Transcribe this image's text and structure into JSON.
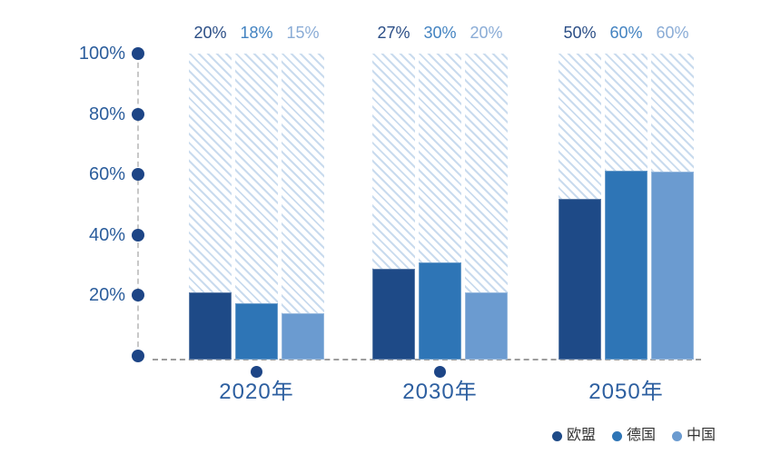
{
  "chart_data": {
    "type": "bar",
    "title": "",
    "y_axis": {
      "tick_labels": [
        "100%",
        "80%",
        "60%",
        "40%",
        "20%"
      ],
      "range": [
        0,
        100
      ],
      "grid": false,
      "text_color": "#2b5d9c"
    },
    "categories": [
      "2020年",
      "2030年",
      "2050年"
    ],
    "series": [
      {
        "name": "欧盟",
        "color": "#1e4a87",
        "values": [
          20,
          27,
          50
        ]
      },
      {
        "name": "德国",
        "color": "#2e75b6",
        "values": [
          18,
          30,
          60
        ]
      },
      {
        "name": "中国",
        "color": "#6b9bd0",
        "values": [
          15,
          20,
          60
        ]
      }
    ],
    "value_label_colors": [
      "#2b4e86",
      "#4383c1",
      "#8aacd6"
    ],
    "groups": [
      {
        "label": "2020年",
        "axis_dot": true,
        "bars": [
          {
            "series": "欧盟",
            "value_label": "20%",
            "display_pct": 22.0
          },
          {
            "series": "德国",
            "value_label": "18%",
            "display_pct": 18.3
          },
          {
            "series": "中国",
            "value_label": "15%",
            "display_pct": 15.0
          }
        ]
      },
      {
        "label": "2030年",
        "axis_dot": true,
        "bars": [
          {
            "series": "欧盟",
            "value_label": "27%",
            "display_pct": 29.7
          },
          {
            "series": "德国",
            "value_label": "30%",
            "display_pct": 31.7
          },
          {
            "series": "中国",
            "value_label": "20%",
            "display_pct": 22.0
          }
        ]
      },
      {
        "label": "2050年",
        "axis_dot": false,
        "bars": [
          {
            "series": "欧盟",
            "value_label": "50%",
            "display_pct": 52.4
          },
          {
            "series": "德国",
            "value_label": "60%",
            "display_pct": 61.6
          },
          {
            "series": "中国",
            "value_label": "60%",
            "display_pct": 61.4
          }
        ]
      }
    ],
    "legend": {
      "position": "bottom-right",
      "items": [
        "欧盟",
        "德国",
        "中国"
      ],
      "text_color": "#333333"
    },
    "style_colors": {
      "hatch_stripe": "#c9dbee",
      "axis_dot": "#1d4586",
      "y_dash_line": "#c8c8c8",
      "x_dash_line": "#9d9d9d",
      "category_text": "#2d5fa0"
    }
  }
}
